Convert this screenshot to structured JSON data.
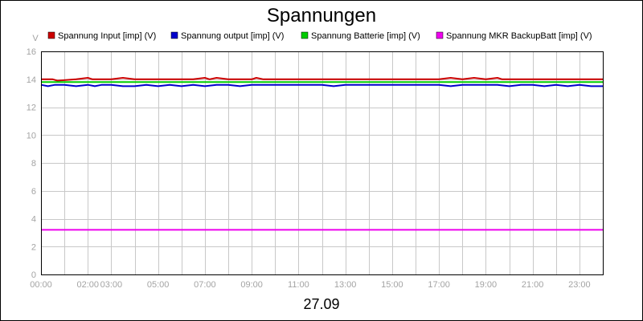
{
  "chart_data": {
    "type": "line",
    "title": "Spannungen",
    "xlabel": "27.09",
    "ylabel": "V",
    "ylim": [
      0,
      16
    ],
    "y_ticks": [
      "0",
      "2",
      "4",
      "6",
      "8",
      "10",
      "12",
      "14",
      "16"
    ],
    "xlim": [
      "00:00",
      "24:00"
    ],
    "x_ticks": [
      "00:00",
      "02:00",
      "03:00",
      "05:00",
      "07:00",
      "09:00",
      "11:00",
      "13:00",
      "15:00",
      "17:00",
      "19:00",
      "21:00",
      "23:00"
    ],
    "x_tick_hours": [
      0,
      2,
      3,
      5,
      7,
      9,
      11,
      13,
      15,
      17,
      19,
      21,
      23
    ],
    "minor_grid_hours": [
      1,
      4,
      6,
      8,
      10,
      12,
      14,
      16,
      18,
      20,
      22
    ],
    "grid": true,
    "legend_position": "top",
    "series": [
      {
        "name": "Spannung Input [imp] (V)",
        "color": "#cc0000",
        "x_hours": [
          0,
          0.5,
          0.7,
          1.5,
          2,
          2.2,
          2.6,
          3,
          3.5,
          4,
          4.5,
          5,
          5.5,
          6,
          6.5,
          7,
          7.2,
          7.5,
          8,
          9,
          9.2,
          9.5,
          10,
          11,
          12,
          13,
          14,
          15,
          16,
          17,
          17.5,
          18,
          18.5,
          19,
          19.5,
          19.7,
          20,
          20.5,
          21,
          21.5,
          22,
          22.5,
          23,
          23.5,
          24
        ],
        "values": [
          14.0,
          14.0,
          13.9,
          14.0,
          14.1,
          14.0,
          14.0,
          14.0,
          14.1,
          14.0,
          14.0,
          14.0,
          14.0,
          14.0,
          14.0,
          14.1,
          14.0,
          14.1,
          14.0,
          14.0,
          14.1,
          14.0,
          14.0,
          14.0,
          14.0,
          14.0,
          14.0,
          14.0,
          14.0,
          14.0,
          14.1,
          14.0,
          14.1,
          14.0,
          14.1,
          14.0,
          14.0,
          14.0,
          14.0,
          14.0,
          14.0,
          14.0,
          14.0,
          14.0,
          14.0
        ]
      },
      {
        "name": "Spannung output [imp] (V)",
        "color": "#0000cc",
        "x_hours": [
          0,
          0.3,
          0.6,
          1,
          1.5,
          2,
          2.3,
          2.6,
          3,
          3.5,
          4,
          4.5,
          5,
          5.5,
          6,
          6.5,
          7,
          7.5,
          8,
          8.5,
          9,
          9.5,
          10,
          11,
          12,
          12.5,
          13,
          14,
          15,
          16,
          17,
          17.5,
          18,
          19,
          19.5,
          20,
          20.5,
          21,
          21.5,
          22,
          22.5,
          23,
          23.5,
          24
        ],
        "values": [
          13.6,
          13.5,
          13.6,
          13.6,
          13.5,
          13.6,
          13.5,
          13.6,
          13.6,
          13.5,
          13.5,
          13.6,
          13.5,
          13.6,
          13.5,
          13.6,
          13.5,
          13.6,
          13.6,
          13.5,
          13.6,
          13.6,
          13.6,
          13.6,
          13.6,
          13.5,
          13.6,
          13.6,
          13.6,
          13.6,
          13.6,
          13.5,
          13.6,
          13.6,
          13.6,
          13.5,
          13.6,
          13.6,
          13.5,
          13.6,
          13.5,
          13.6,
          13.5,
          13.5
        ]
      },
      {
        "name": "Spannung Batterie [imp] (V)",
        "color": "#00cc00",
        "x_hours": [
          0,
          24
        ],
        "values": [
          13.8,
          13.8
        ]
      },
      {
        "name": "Spannung MKR BackupBatt [imp] (V)",
        "color": "#ee00ee",
        "x_hours": [
          0,
          24
        ],
        "values": [
          3.2,
          3.2
        ]
      }
    ]
  }
}
